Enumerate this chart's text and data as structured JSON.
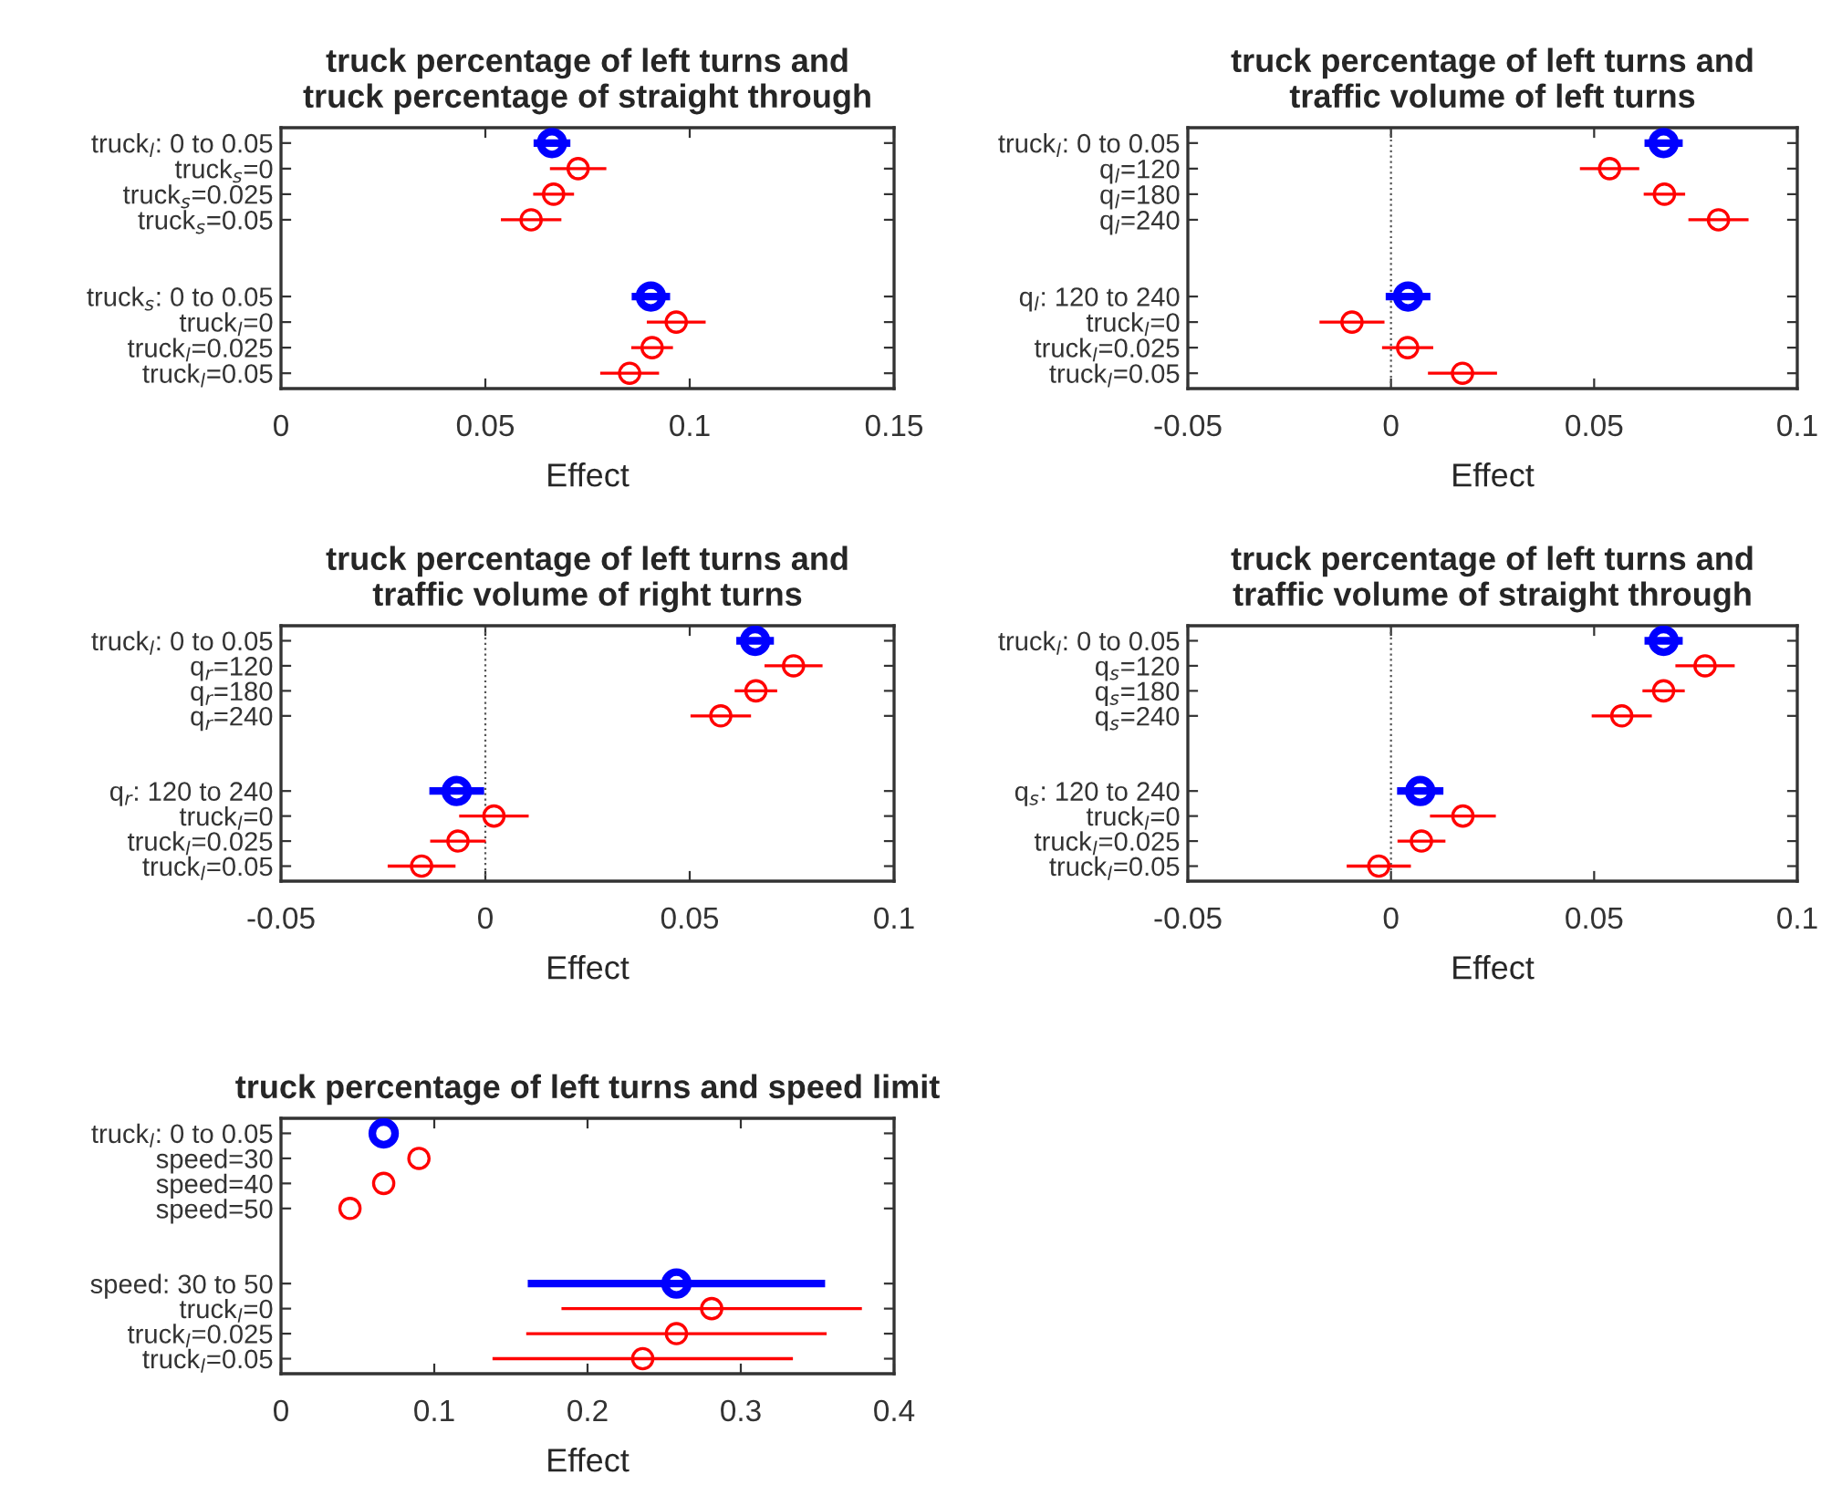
{
  "chart_data": [
    {
      "type": "scatter",
      "orientation": "horizontal",
      "marker": "circle",
      "title": "truck percentage of left turns and\ntruck percentage of straight through",
      "xlabel": "Effect",
      "categories": [
        "truck$_{l}$: 0 to 0.05",
        "truck$_{s}$=0",
        "truck$_{s}$=0.025",
        "truck$_{s}$=0.05",
        null,
        null,
        "truck$_{s}$: 0 to 0.05",
        "truck$_{l}$=0",
        "truck$_{l}$=0.025",
        "truck$_{l}$=0.05"
      ],
      "series": [
        {
          "color": "#0000ff",
          "values": [
            0.0663,
            null,
            null,
            null,
            null,
            null,
            0.0905,
            null,
            null,
            null
          ],
          "errors": [
            0.0045,
            null,
            null,
            null,
            null,
            null,
            0.0047,
            null,
            null,
            null
          ]
        },
        {
          "color": "#ff0000",
          "values": [
            null,
            0.0727,
            0.0667,
            0.0612,
            null,
            null,
            null,
            0.0967,
            0.0908,
            0.0853
          ],
          "errors": [
            null,
            0.0069,
            0.005,
            0.0074,
            null,
            null,
            null,
            0.0072,
            0.0051,
            0.0072
          ]
        }
      ],
      "xlim": [
        0,
        0.15
      ],
      "xticks": [
        0,
        0.05,
        0.1,
        0.15
      ]
    },
    {
      "type": "scatter",
      "orientation": "horizontal",
      "marker": "circle",
      "title": "truck percentage of left turns and\ntraffic volume of left turns",
      "xlabel": "Effect",
      "categories": [
        "truck$_{l}$: 0 to 0.05",
        "q$_{l}$=120",
        "q$_{l}$=180",
        "q$_{l}$=240",
        null,
        null,
        "q$_{l}$: 120 to 240",
        "truck$_{l}$=0",
        "truck$_{l}$=0.025",
        "truck$_{l}$=0.05"
      ],
      "series": [
        {
          "color": "#0000ff",
          "values": [
            0.0671,
            null,
            null,
            null,
            null,
            null,
            0.0042,
            null,
            null,
            null
          ],
          "errors": [
            0.0047,
            null,
            null,
            null,
            null,
            null,
            0.0055,
            null,
            null,
            null
          ]
        },
        {
          "color": "#ff0000",
          "values": [
            null,
            0.0538,
            0.0673,
            0.0806,
            null,
            null,
            null,
            -0.0096,
            0.0041,
            0.0176
          ],
          "errors": [
            null,
            0.0073,
            0.0051,
            0.0074,
            null,
            null,
            null,
            0.008,
            0.0063,
            0.0085
          ]
        }
      ],
      "xlim": [
        -0.05,
        0.1
      ],
      "xticks": [
        -0.05,
        0,
        0.05,
        0.1
      ],
      "ref_lines": [
        {
          "axis": "x",
          "value": 0,
          "line_style": "dotted"
        }
      ]
    },
    {
      "type": "scatter",
      "orientation": "horizontal",
      "marker": "circle",
      "title": "truck percentage of left turns and\ntraffic volume of right turns",
      "xlabel": "Effect",
      "categories": [
        "truck$_{l}$: 0 to 0.05",
        "q$_{r}$=120",
        "q$_{r}$=180",
        "q$_{r}$=240",
        null,
        null,
        "q$_{r}$: 120 to 240",
        "truck$_{l}$=0",
        "truck$_{l}$=0.025",
        "truck$_{l}$=0.05"
      ],
      "series": [
        {
          "color": "#0000ff",
          "values": [
            0.066,
            null,
            null,
            null,
            null,
            null,
            -0.007,
            null,
            null,
            null
          ],
          "errors": [
            0.0046,
            null,
            null,
            null,
            null,
            null,
            0.0067,
            null,
            null,
            null
          ]
        },
        {
          "color": "#ff0000",
          "values": [
            null,
            0.0754,
            0.0662,
            0.0576,
            null,
            null,
            null,
            0.0021,
            -0.0067,
            -0.0156
          ],
          "errors": [
            null,
            0.0071,
            0.0052,
            0.0074,
            null,
            null,
            null,
            0.0085,
            0.0068,
            0.0083
          ]
        }
      ],
      "xlim": [
        -0.05,
        0.1
      ],
      "xticks": [
        -0.05,
        0,
        0.05,
        0.1
      ],
      "ref_lines": [
        {
          "axis": "x",
          "value": 0,
          "line_style": "dotted"
        }
      ]
    },
    {
      "type": "scatter",
      "orientation": "horizontal",
      "marker": "circle",
      "title": "truck percentage of left turns and\ntraffic volume of straight through",
      "xlabel": "Effect",
      "categories": [
        "truck$_{l}$: 0 to 0.05",
        "q$_{s}$=120",
        "q$_{s}$=180",
        "q$_{s}$=240",
        null,
        null,
        "q$_{s}$: 120 to 240",
        "truck$_{l}$=0",
        "truck$_{l}$=0.025",
        "truck$_{l}$=0.05"
      ],
      "series": [
        {
          "color": "#0000ff",
          "values": [
            0.0671,
            null,
            null,
            null,
            null,
            null,
            0.0072,
            null,
            null,
            null
          ],
          "errors": [
            0.0047,
            null,
            null,
            null,
            null,
            null,
            0.0057,
            null,
            null,
            null
          ]
        },
        {
          "color": "#ff0000",
          "values": [
            null,
            0.0773,
            0.0671,
            0.0568,
            null,
            null,
            null,
            0.0177,
            0.0075,
            -0.003
          ],
          "errors": [
            null,
            0.0073,
            0.0052,
            0.0074,
            null,
            null,
            null,
            0.0081,
            0.0059,
            0.0079
          ]
        }
      ],
      "xlim": [
        -0.05,
        0.1
      ],
      "xticks": [
        -0.05,
        0,
        0.05,
        0.1
      ],
      "ref_lines": [
        {
          "axis": "x",
          "value": 0,
          "line_style": "dotted"
        }
      ]
    },
    {
      "type": "scatter",
      "orientation": "horizontal",
      "marker": "circle",
      "title": "truck percentage of left turns and speed limit",
      "xlabel": "Effect",
      "categories": [
        "truck$_{l}$: 0 to 0.05",
        "speed=30",
        "speed=40",
        "speed=50",
        null,
        null,
        "speed: 30 to 50",
        "truck$_{l}$=0",
        "truck$_{l}$=0.025",
        "truck$_{l}$=0.05"
      ],
      "series": [
        {
          "color": "#0000ff",
          "values": [
            0.067,
            null,
            null,
            null,
            null,
            null,
            0.258,
            null,
            null,
            null
          ],
          "errors": [
            null,
            null,
            null,
            null,
            null,
            null,
            0.097,
            null,
            null,
            null
          ]
        },
        {
          "color": "#ff0000",
          "values": [
            null,
            0.09,
            0.067,
            0.045,
            null,
            null,
            null,
            0.281,
            0.258,
            0.236
          ],
          "errors": [
            null,
            null,
            null,
            null,
            null,
            null,
            null,
            0.098,
            0.098,
            0.098
          ]
        }
      ],
      "xlim": [
        0,
        0.4
      ],
      "xticks": [
        0,
        0.1,
        0.2,
        0.3,
        0.4
      ]
    }
  ]
}
